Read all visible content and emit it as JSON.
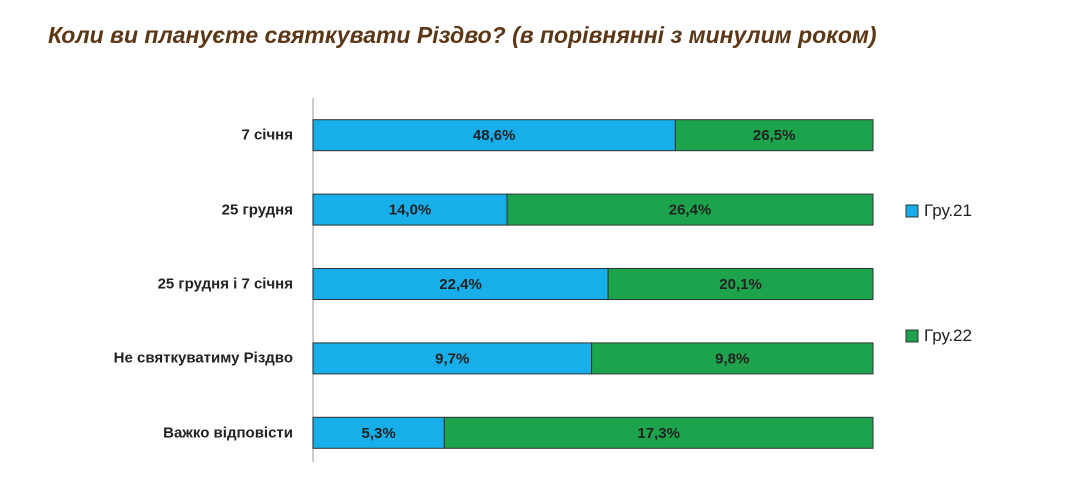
{
  "chart_data": {
    "type": "bar",
    "title": "Коли ви плануєте святкувати Різдво? (в порівнянні з минулим роком)",
    "stacked_percent": true,
    "orientation": "horizontal",
    "categories": [
      "7 січня",
      "25 грудня",
      "25 грудня і 7 січня",
      "Не святкуватиму Різдво",
      "Важко відповісти"
    ],
    "series": [
      {
        "name": "Гру.21",
        "color": "#17aeea",
        "values": [
          48.6,
          14.0,
          22.4,
          9.7,
          5.3
        ],
        "value_labels": [
          "48,6%",
          "14,0%",
          "22,4%",
          "9,7%",
          "5,3%"
        ]
      },
      {
        "name": "Гру.22",
        "color": "#1ca34c",
        "values": [
          26.5,
          26.4,
          20.1,
          9.8,
          17.3
        ],
        "value_labels": [
          "26,5%",
          "26,4%",
          "20,1%",
          "9,8%",
          "17,3%"
        ]
      }
    ]
  }
}
